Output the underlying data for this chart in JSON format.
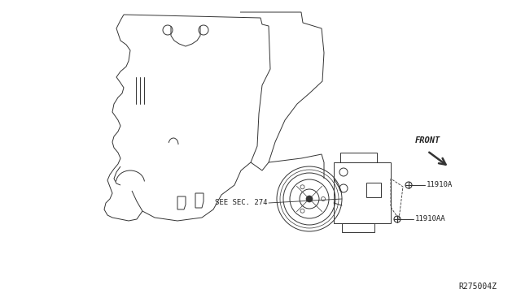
{
  "bg_color": "#ffffff",
  "line_color": "#333333",
  "text_color": "#222222",
  "diagram_id": "R275004Z",
  "front_label": "FRONT",
  "label_11910A": "11910A",
  "label_11910AA": "11910AA",
  "see_sec_label": "SEE SEC. 274",
  "annotation_fontsize": 6.5,
  "lw": 0.7
}
